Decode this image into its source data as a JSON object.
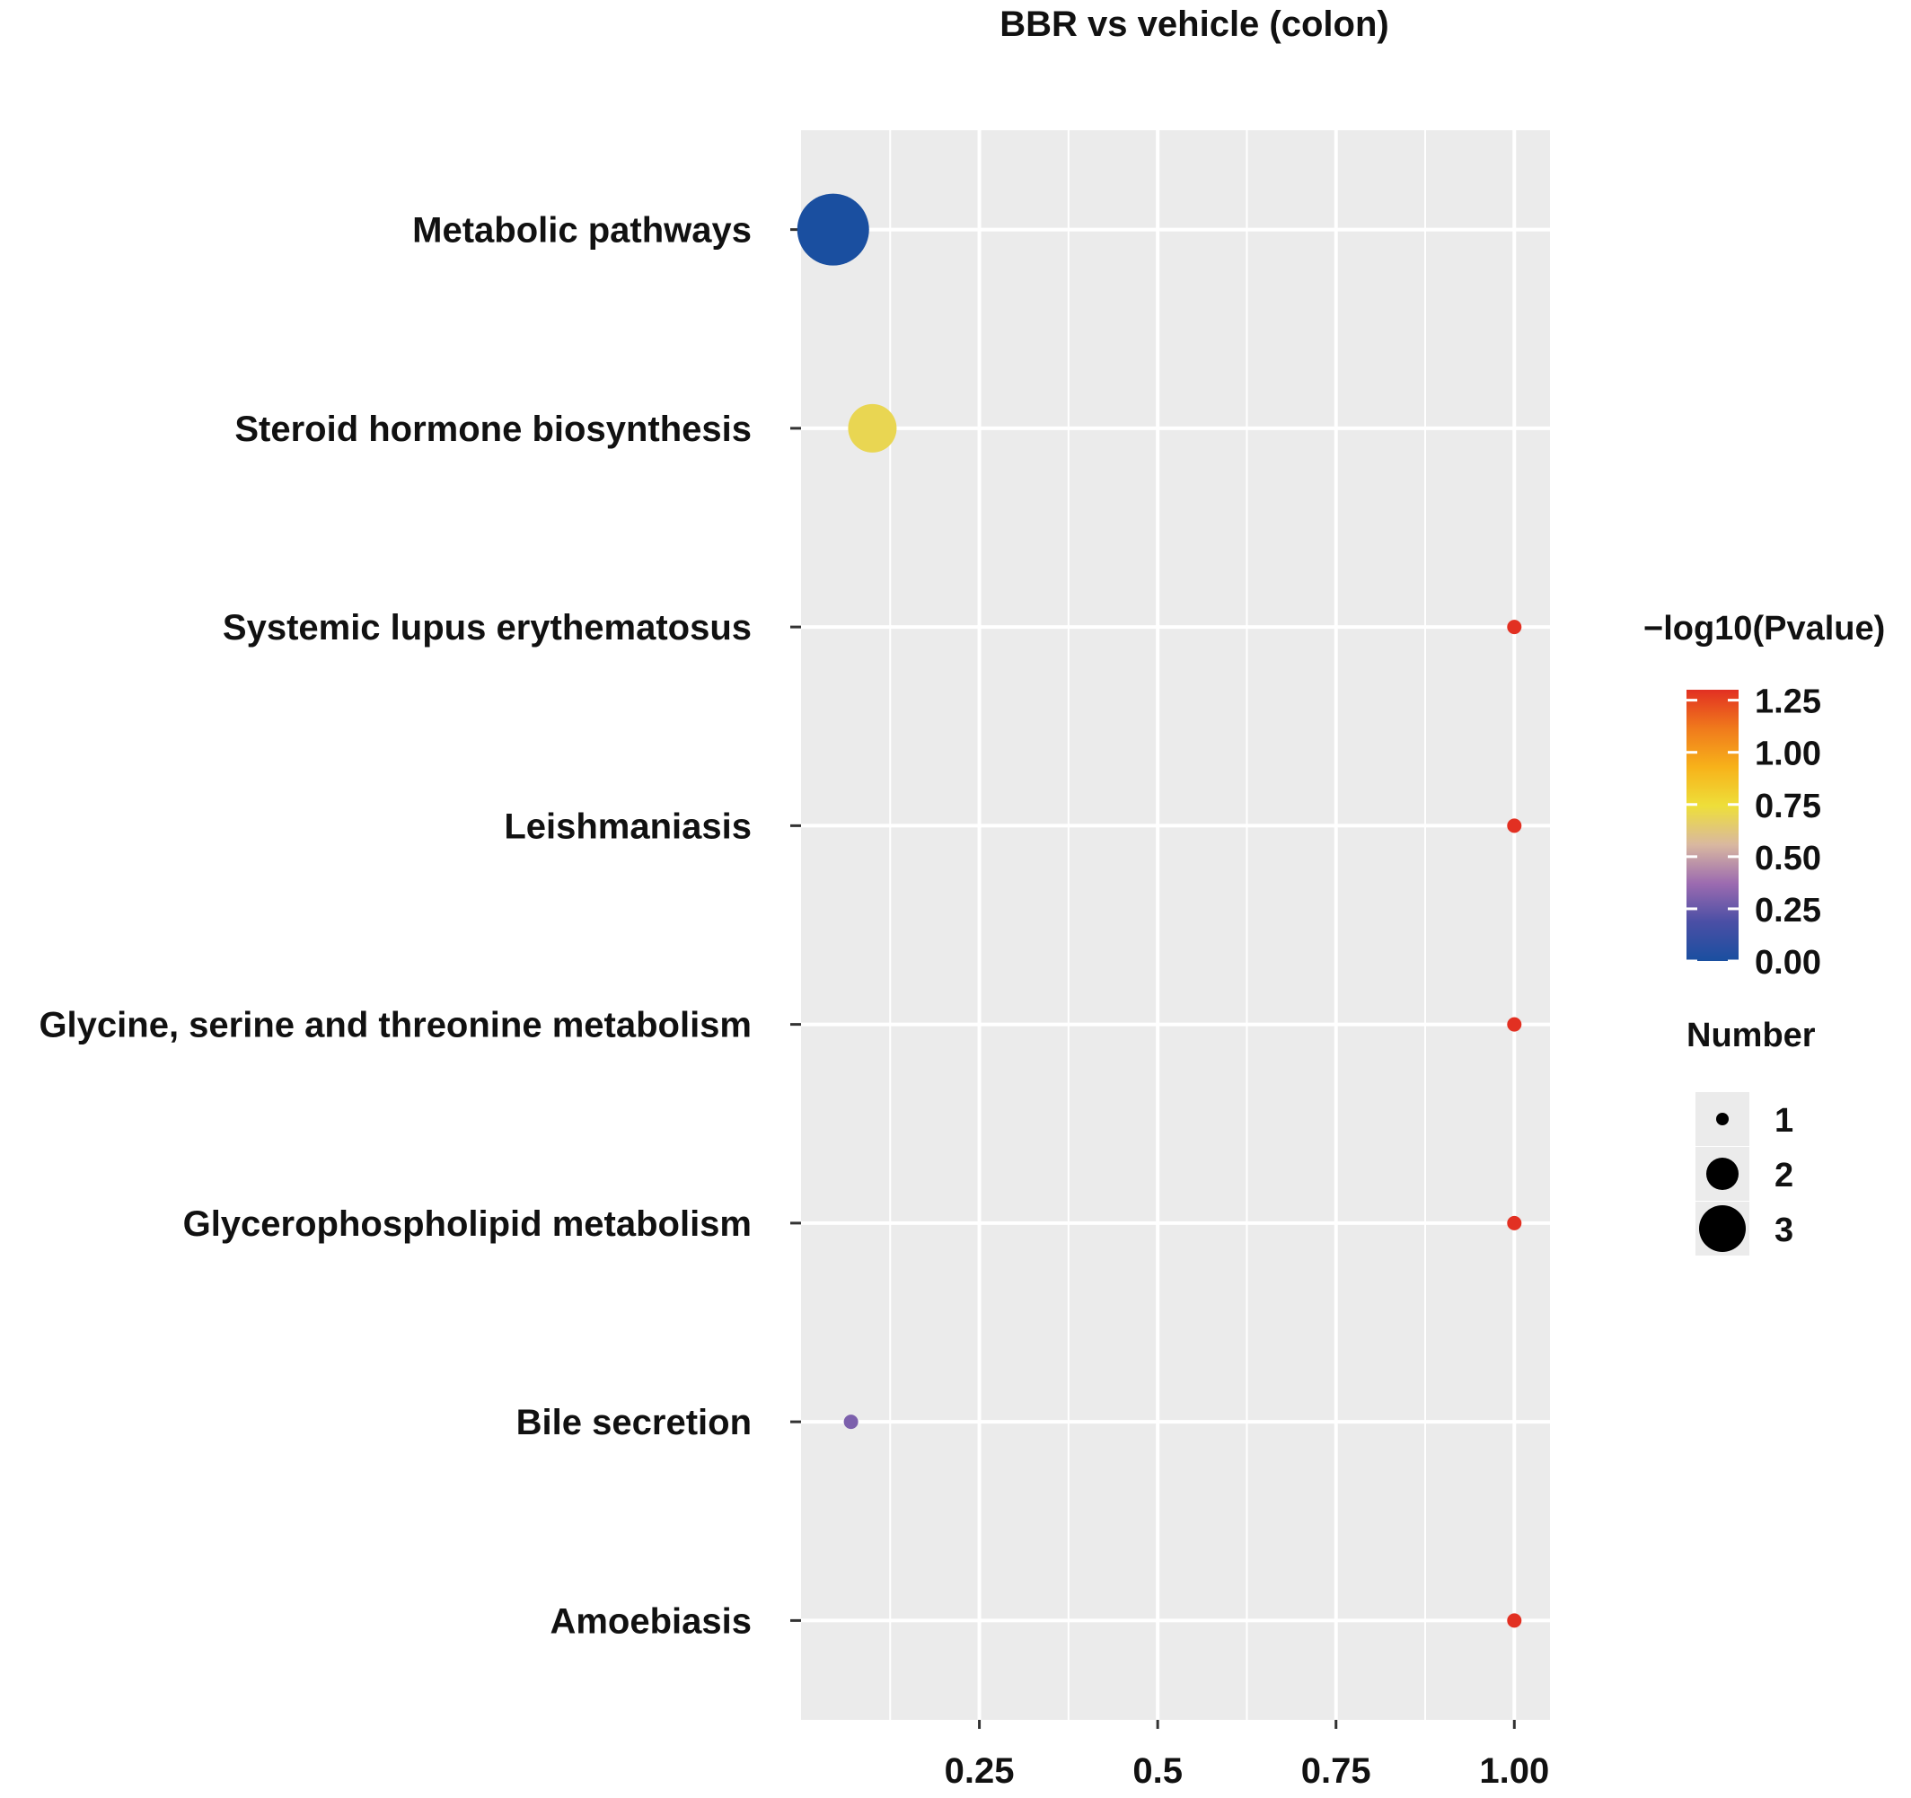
{
  "chart_data": {
    "type": "scatter",
    "title": "BBR vs  vehicle (colon)",
    "xlabel": "",
    "ylabel": "",
    "xlim": [
      0.0,
      1.05
    ],
    "x_ticks": [
      0.25,
      0.5,
      0.75,
      1.0
    ],
    "x_tick_labels": [
      "0.25",
      "0.5",
      "0.75",
      "1.00"
    ],
    "grid": true,
    "categories": [
      "Metabolic pathways",
      "Steroid hormone biosynthesis",
      "Systemic lupus erythematosus",
      "Leishmaniasis",
      "Glycine, serine and threonine metabolism",
      "Glycerophospholipid metabolism",
      "Bile secretion",
      "Amoebiasis"
    ],
    "points": [
      {
        "category": "Metabolic pathways",
        "x": 0.045,
        "number": 3,
        "neg_log10_pvalue": 0.0
      },
      {
        "category": "Steroid hormone biosynthesis",
        "x": 0.1,
        "number": 2,
        "neg_log10_pvalue": 0.7
      },
      {
        "category": "Systemic lupus erythematosus",
        "x": 1.0,
        "number": 1,
        "neg_log10_pvalue": 1.3
      },
      {
        "category": "Leishmaniasis",
        "x": 1.0,
        "number": 1,
        "neg_log10_pvalue": 1.3
      },
      {
        "category": "Glycine, serine and threonine metabolism",
        "x": 1.0,
        "number": 1,
        "neg_log10_pvalue": 1.3
      },
      {
        "category": "Glycerophospholipid metabolism",
        "x": 1.0,
        "number": 1,
        "neg_log10_pvalue": 1.3
      },
      {
        "category": "Bile secretion",
        "x": 0.07,
        "number": 1,
        "neg_log10_pvalue": 0.3
      },
      {
        "category": "Amoebiasis",
        "x": 1.0,
        "number": 1,
        "neg_log10_pvalue": 1.3
      }
    ],
    "color_legend": {
      "title": "−log10(Pvalue)",
      "ticks": [
        1.25,
        1.0,
        0.75,
        0.5,
        0.25,
        0.0
      ],
      "tick_labels": [
        "1.25",
        "1.00",
        "0.75",
        "0.50",
        "0.25",
        "0.00"
      ],
      "range": [
        0.0,
        1.3
      ],
      "colors": [
        "#1a4fa0",
        "#4a4fa5",
        "#9c6bb0",
        "#d9b8a0",
        "#eedf3a",
        "#f7b21a",
        "#f07a1c",
        "#e23022"
      ]
    },
    "size_legend": {
      "title": "Number",
      "values": [
        1,
        2,
        3
      ],
      "labels": [
        "1",
        "2",
        "3"
      ]
    },
    "legend_position": "right"
  }
}
